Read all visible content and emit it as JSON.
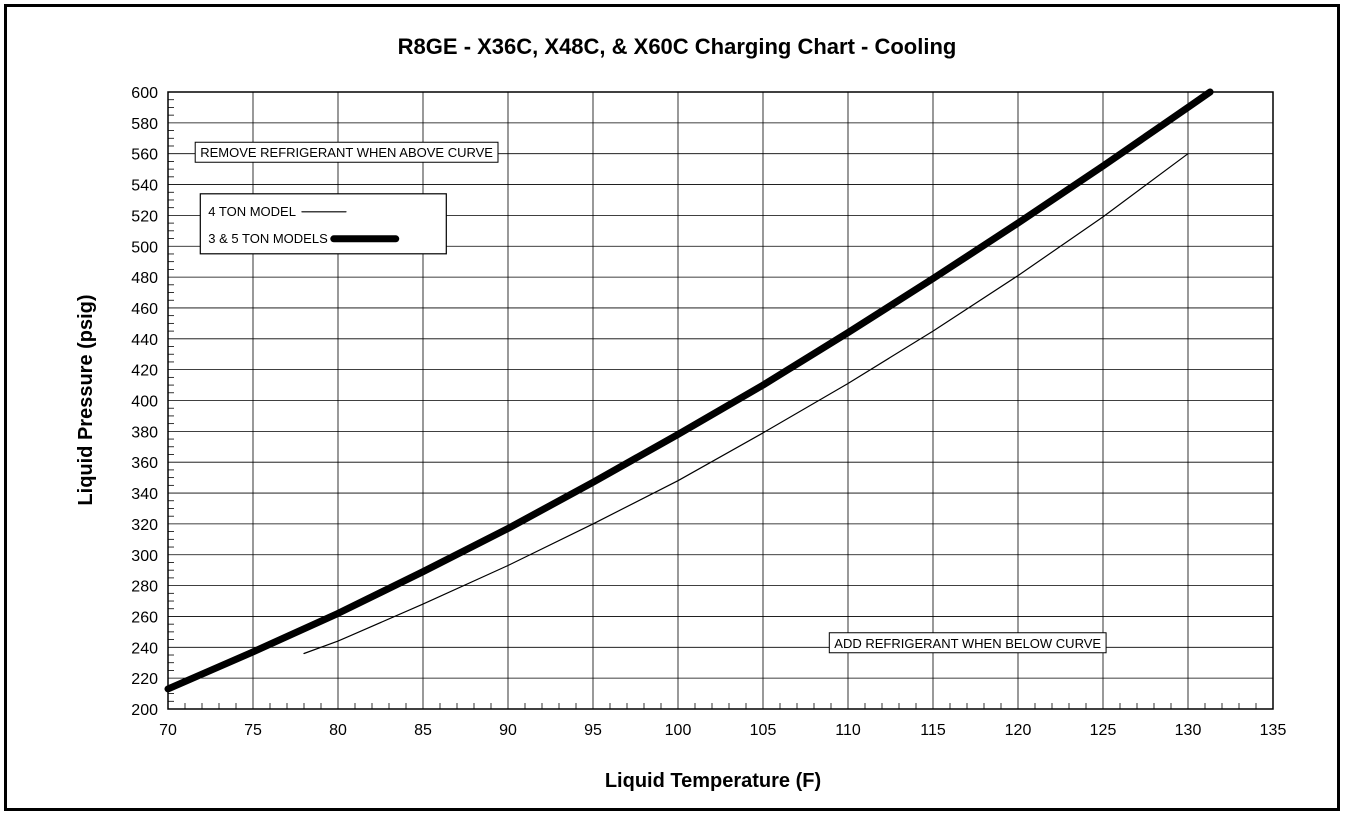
{
  "chart_data": {
    "type": "line",
    "title": "R8GE - X36C, X48C, & X60C Charging Chart - Cooling",
    "xlabel": "Liquid Temperature (F)",
    "ylabel": "Liquid Pressure (psig)",
    "xlim": [
      70,
      135
    ],
    "ylim": [
      200,
      600
    ],
    "x_ticks": [
      70,
      75,
      80,
      85,
      90,
      95,
      100,
      105,
      110,
      115,
      120,
      125,
      130,
      135
    ],
    "y_ticks": [
      200,
      220,
      240,
      260,
      280,
      300,
      320,
      340,
      360,
      380,
      400,
      420,
      440,
      460,
      480,
      500,
      520,
      540,
      560,
      580,
      600
    ],
    "x_minor_step": 1,
    "y_minor_step": 5,
    "grid": true,
    "series": [
      {
        "name": "4 TON MODEL",
        "style": "thin",
        "x": [
          78,
          80,
          85,
          90,
          95,
          100,
          105,
          110,
          115,
          120,
          125,
          130
        ],
        "y": [
          236,
          244,
          268,
          293,
          320,
          348,
          379,
          411,
          445,
          481,
          519,
          560
        ]
      },
      {
        "name": "3 & 5 TON MODELS",
        "style": "thick",
        "x": [
          70,
          75,
          80,
          85,
          90,
          95,
          100,
          105,
          110,
          115,
          120,
          125,
          130,
          131.3
        ],
        "y": [
          213,
          237,
          262,
          289,
          317,
          347,
          378,
          410,
          444,
          479,
          515,
          552,
          590,
          600
        ]
      }
    ],
    "legend_position": "top-left",
    "annotations": [
      {
        "text": "REMOVE REFRIGERANT WHEN ABOVE CURVE",
        "x": 71.6,
        "y": 559
      },
      {
        "text": "ADD REFRIGERANT WHEN BELOW CURVE",
        "x": 108.9,
        "y": 241
      }
    ],
    "colors": {
      "line": "#000000",
      "grid": "#000000",
      "background": "#ffffff"
    }
  }
}
